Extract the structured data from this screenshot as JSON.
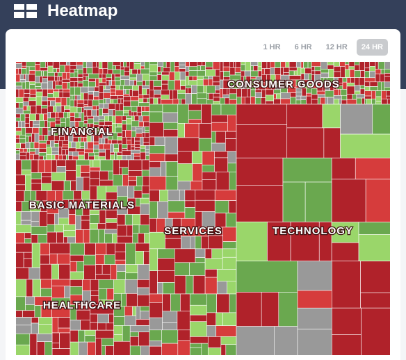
{
  "header": {
    "title": "Heatmap"
  },
  "time_ranges": [
    {
      "label": "1 HR",
      "active": false
    },
    {
      "label": "6 HR",
      "active": false
    },
    {
      "label": "12 HR",
      "active": false
    },
    {
      "label": "24 HR",
      "active": true
    }
  ],
  "sectors": [
    "CONSUMER GOODS",
    "FINANCIAL",
    "BASIC MATERIALS",
    "SERVICES",
    "TECHNOLOGY",
    "HEALTHCARE"
  ]
}
